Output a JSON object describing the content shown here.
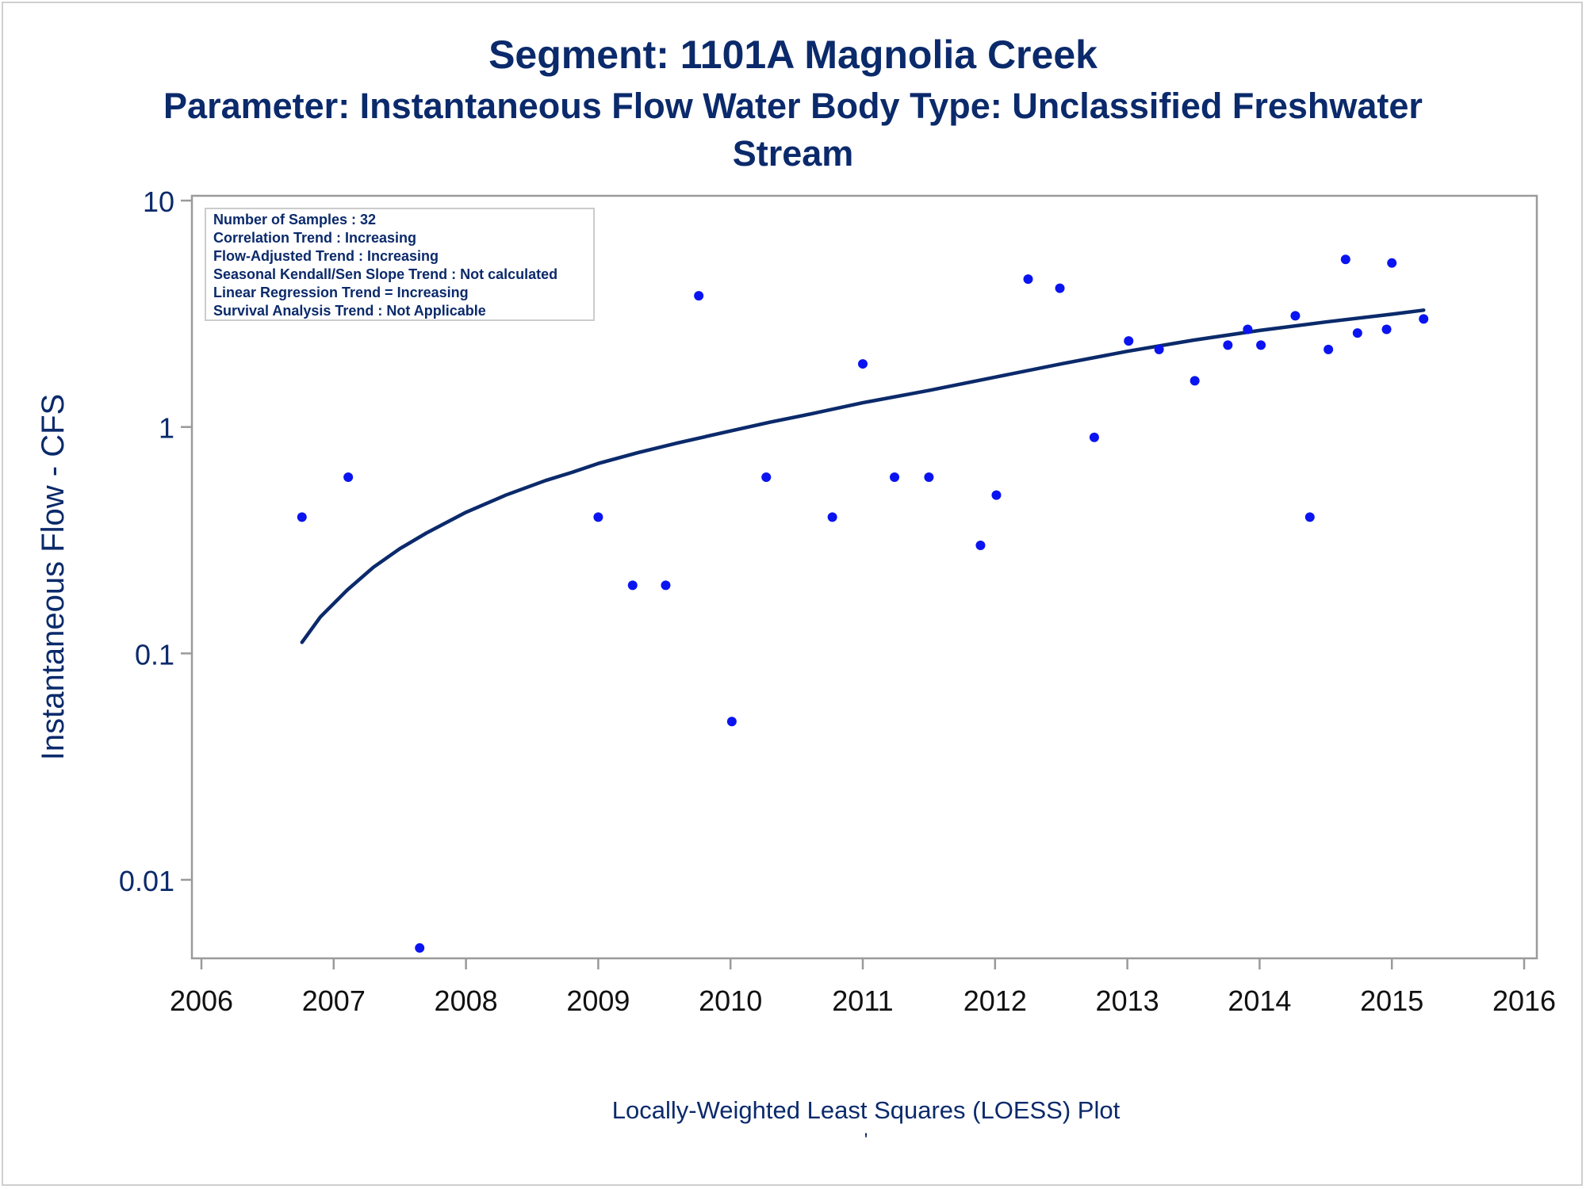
{
  "titles": {
    "line1": "Segment: 1101A  Magnolia Creek",
    "line2": "Parameter: Instantaneous Flow   Water Body Type: Unclassified Freshwater",
    "line3": "Stream"
  },
  "stats_box": [
    "Number of Samples : 32",
    "Correlation Trend : Increasing",
    "Flow-Adjusted Trend : Increasing",
    "Seasonal Kendall/Sen Slope Trend : Not calculated",
    "Linear Regression Trend = Increasing",
    "Survival Analysis Trend : Not Applicable"
  ],
  "footnote": "Locally-Weighted Least Squares (LOESS) Plot",
  "footnote_mark": "'",
  "colors": {
    "text": "#0b2a6b",
    "points": "#0a14f0",
    "line": "#0b2a6b",
    "axis": "#9a9a9a"
  },
  "chart_data": {
    "type": "scatter",
    "xlabel": "",
    "ylabel": "Instantaneous Flow - CFS",
    "yscale": "log",
    "xlim": [
      2006,
      2016
    ],
    "ylim": [
      0.0045,
      10.5
    ],
    "x_ticks": [
      2006,
      2007,
      2008,
      2009,
      2010,
      2011,
      2012,
      2013,
      2014,
      2015,
      2016
    ],
    "y_ticks": [
      {
        "value": 10,
        "label": "10"
      },
      {
        "value": 1,
        "label": "1"
      },
      {
        "value": 0.1,
        "label": "0.1"
      },
      {
        "value": 0.01,
        "label": "0.01"
      }
    ],
    "points": [
      [
        2006.76,
        0.4
      ],
      [
        2007.11,
        0.6
      ],
      [
        2007.65,
        0.005
      ],
      [
        2009.0,
        0.4
      ],
      [
        2009.26,
        0.2
      ],
      [
        2009.51,
        0.2
      ],
      [
        2009.76,
        3.8
      ],
      [
        2010.01,
        0.05
      ],
      [
        2010.27,
        0.6
      ],
      [
        2010.77,
        0.4
      ],
      [
        2011.0,
        1.9
      ],
      [
        2011.24,
        0.6
      ],
      [
        2011.5,
        0.6
      ],
      [
        2011.89,
        0.3
      ],
      [
        2012.01,
        0.5
      ],
      [
        2012.25,
        4.5
      ],
      [
        2012.49,
        4.1
      ],
      [
        2012.75,
        0.9
      ],
      [
        2013.01,
        2.4
      ],
      [
        2013.24,
        2.2
      ],
      [
        2013.51,
        1.6
      ],
      [
        2013.76,
        2.3
      ],
      [
        2013.91,
        2.7
      ],
      [
        2014.01,
        2.3
      ],
      [
        2014.27,
        3.1
      ],
      [
        2014.38,
        0.4
      ],
      [
        2014.52,
        2.2
      ],
      [
        2014.65,
        5.5
      ],
      [
        2014.74,
        2.6
      ],
      [
        2014.96,
        2.7
      ],
      [
        2015.0,
        5.3
      ],
      [
        2015.24,
        3.0
      ]
    ],
    "loess_line": [
      [
        2006.76,
        0.112
      ],
      [
        2006.9,
        0.145
      ],
      [
        2007.1,
        0.19
      ],
      [
        2007.3,
        0.24
      ],
      [
        2007.5,
        0.29
      ],
      [
        2007.7,
        0.34
      ],
      [
        2008.0,
        0.42
      ],
      [
        2008.3,
        0.5
      ],
      [
        2008.6,
        0.58
      ],
      [
        2008.8,
        0.63
      ],
      [
        2009.0,
        0.69
      ],
      [
        2009.3,
        0.77
      ],
      [
        2009.6,
        0.85
      ],
      [
        2010.0,
        0.96
      ],
      [
        2010.3,
        1.05
      ],
      [
        2010.6,
        1.14
      ],
      [
        2011.0,
        1.28
      ],
      [
        2011.5,
        1.45
      ],
      [
        2012.0,
        1.66
      ],
      [
        2012.5,
        1.9
      ],
      [
        2013.0,
        2.16
      ],
      [
        2013.5,
        2.42
      ],
      [
        2014.0,
        2.67
      ],
      [
        2014.5,
        2.91
      ],
      [
        2015.0,
        3.15
      ],
      [
        2015.24,
        3.28
      ]
    ]
  }
}
